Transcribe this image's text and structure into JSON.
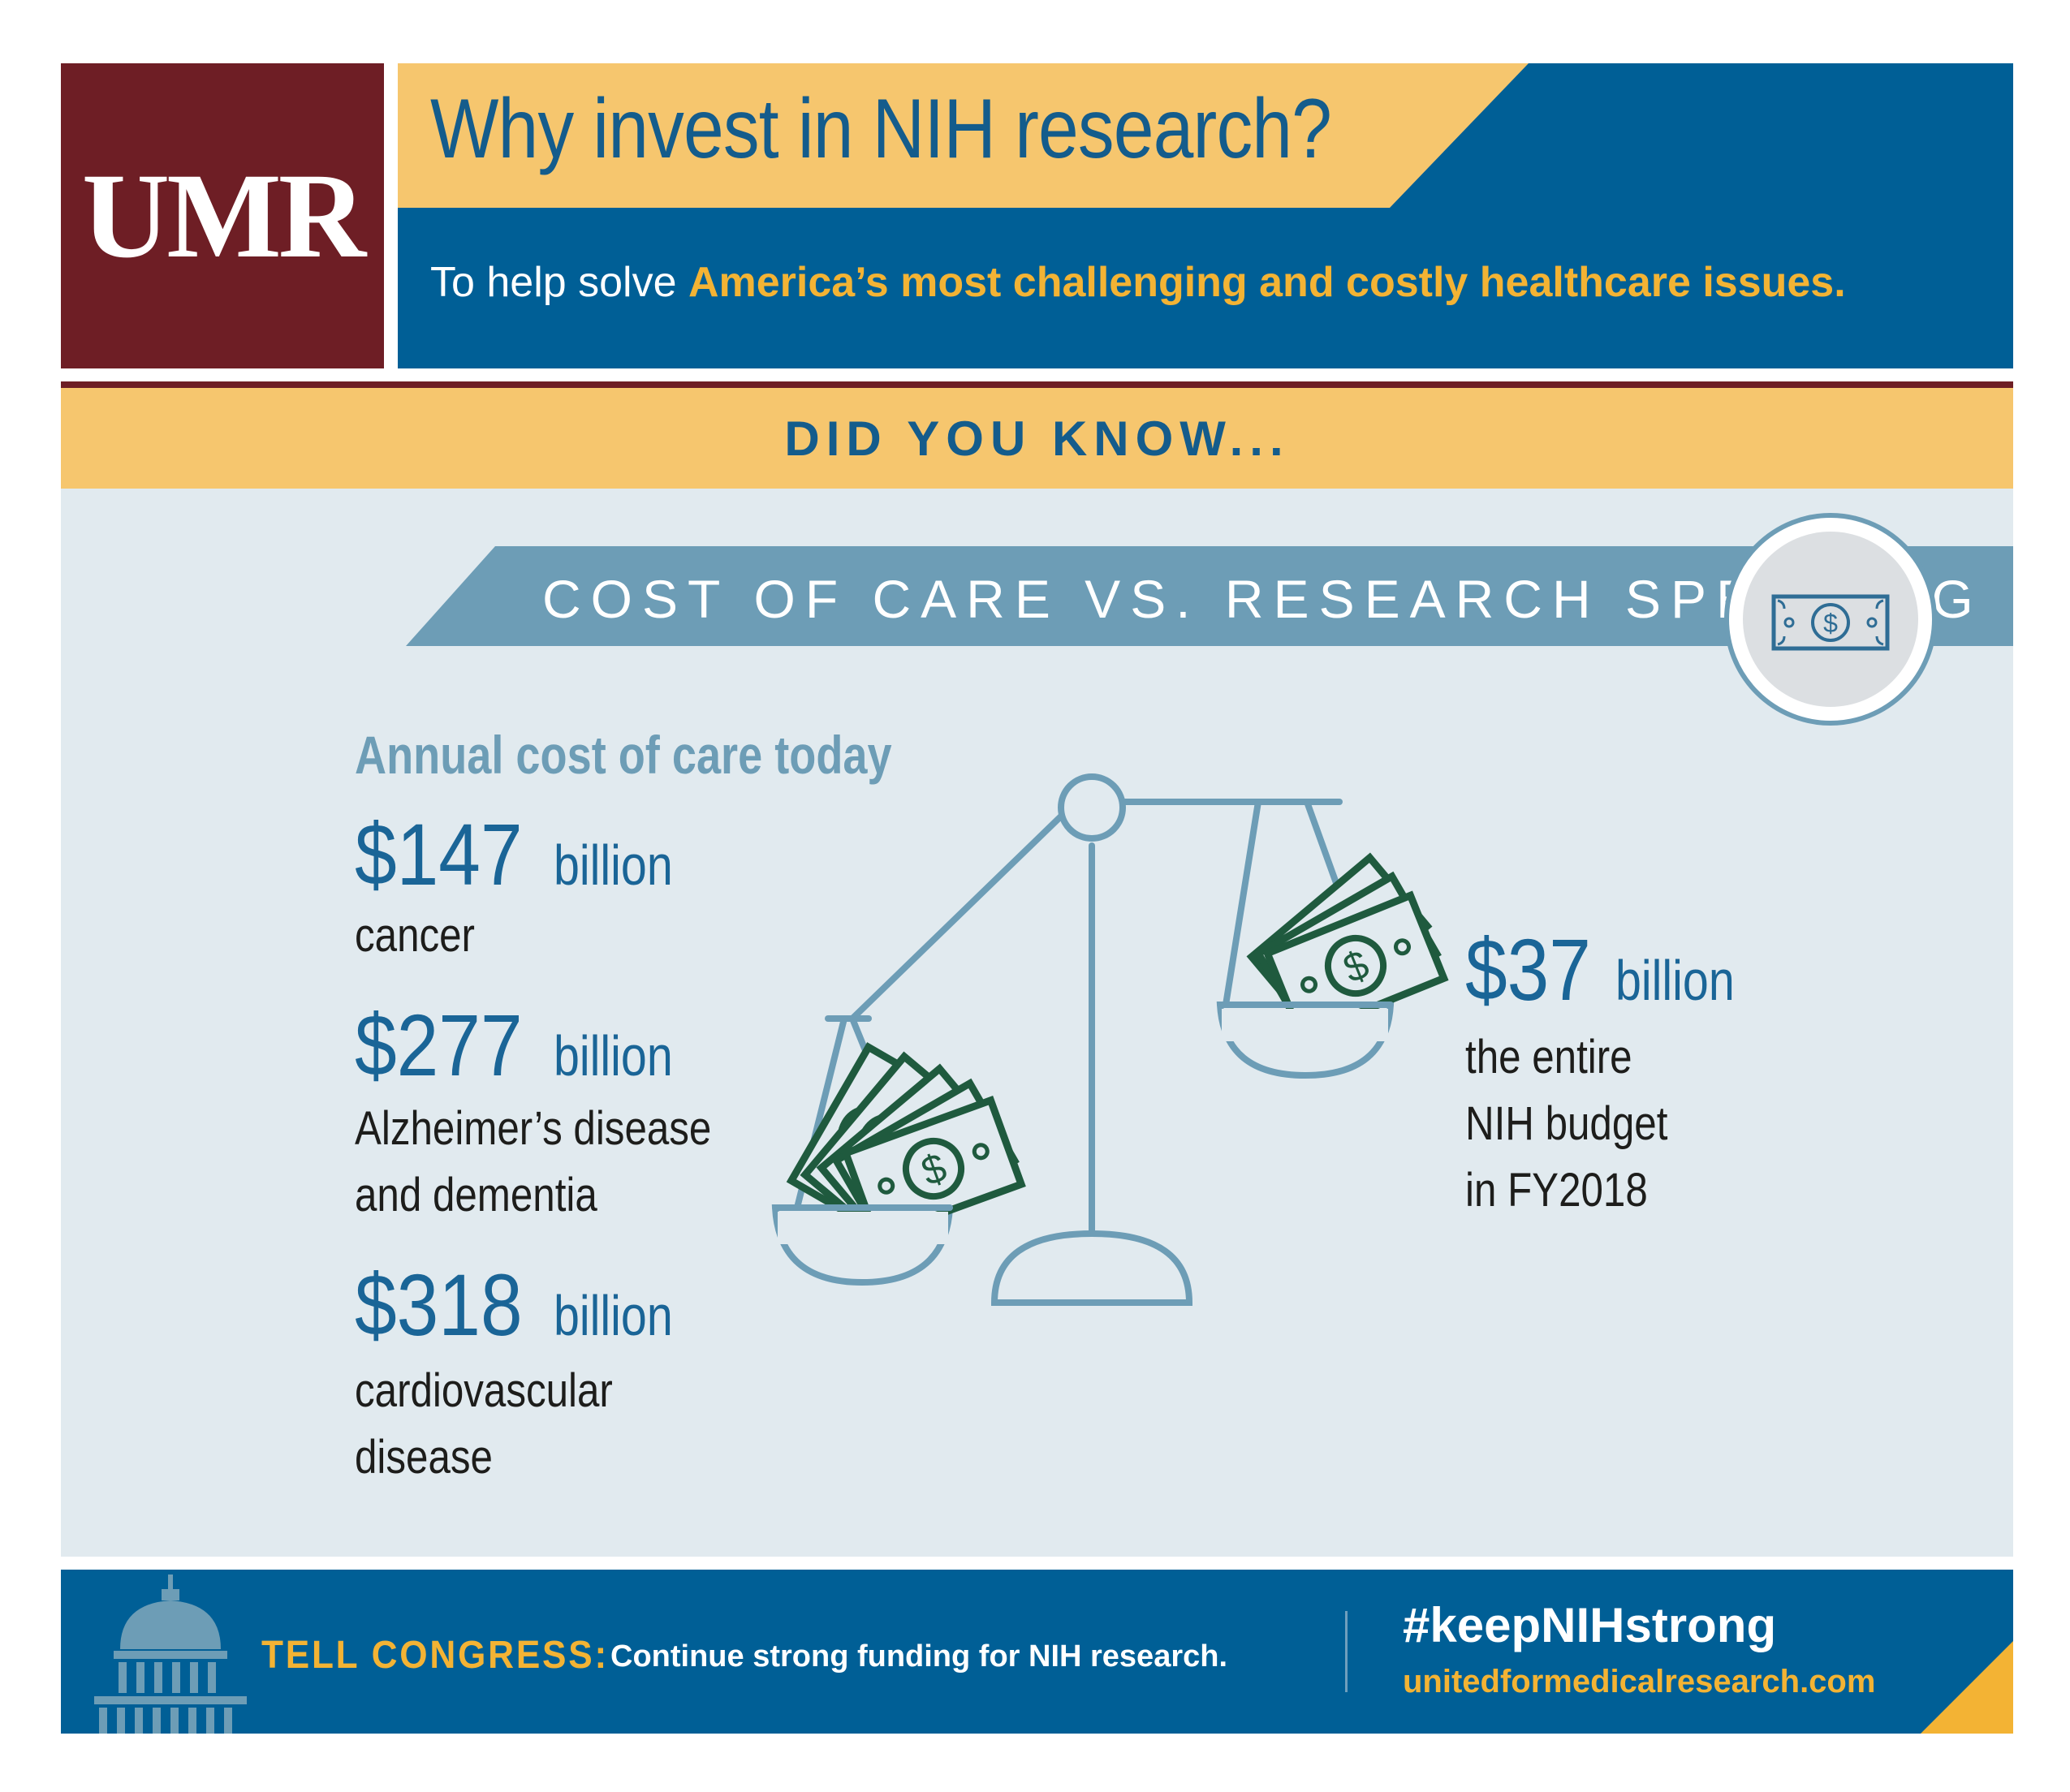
{
  "header": {
    "logo_text": "UMR",
    "title": "Why invest in NIH research?",
    "subtitle_plain": "To help solve ",
    "subtitle_highlight": "America’s most challenging and costly healthcare issues."
  },
  "did_you_know": "DID YOU KNOW...",
  "section": {
    "banner_title": "COST OF CARE VS. RESEARCH SPENDING",
    "annual_heading": "Annual cost of care today"
  },
  "costs": [
    {
      "amount": "$147",
      "unit": "billion",
      "desc_lines": [
        "cancer"
      ]
    },
    {
      "amount": "$277",
      "unit": "billion",
      "desc_lines": [
        "Alzheimer’s disease",
        "and dementia"
      ]
    },
    {
      "amount": "$318",
      "unit": "billion",
      "desc_lines": [
        "cardiovascular",
        "disease"
      ]
    }
  ],
  "nih": {
    "amount": "$37",
    "unit": "billion",
    "desc_lines": [
      "the entire",
      "NIH budget",
      "in FY2018"
    ]
  },
  "footer": {
    "tell_label": "TELL CONGRESS:",
    "tell_text": "Continue strong funding for NIH research.",
    "hashtag": "#keepNIHstrong",
    "website": "unitedformedicalresearch.com"
  },
  "icons": [
    "money-icon",
    "scale-icon",
    "capitol-icon"
  ],
  "colors": {
    "maroon": "#6e1e25",
    "blue": "#005f96",
    "gold": "#f6c66e",
    "accent_gold": "#f3b334",
    "light_blue": "#6d9db6",
    "bill_green": "#1f5a3e"
  }
}
